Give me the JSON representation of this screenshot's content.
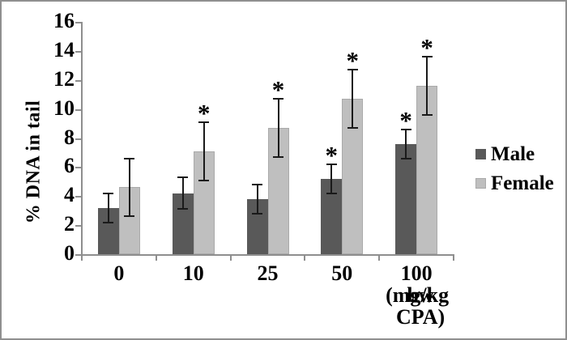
{
  "figure": {
    "border_color": "#8f8f8f",
    "background": "#ffffff"
  },
  "chart_data": {
    "type": "bar",
    "title": "",
    "ylabel": "% DNA in tail",
    "xlabel": "",
    "categories": [
      "0",
      "10",
      "25",
      "50",
      "100"
    ],
    "x_unit_lines": [
      "(mg/kg",
      "bw CPA)"
    ],
    "ylim": [
      0,
      16
    ],
    "yticks": [
      0,
      2,
      4,
      6,
      8,
      10,
      12,
      14,
      16
    ],
    "grid": false,
    "legend_position": "right",
    "significance_marker": "*",
    "axis_color": "#8e8e8e",
    "error_bar_color": "#1a1a1a",
    "text_color": "#000000",
    "series": [
      {
        "name": "Male",
        "color": "#595959",
        "values": [
          3.2,
          4.2,
          3.8,
          5.2,
          7.6
        ],
        "errors": [
          1.0,
          1.1,
          1.0,
          1.0,
          1.0
        ],
        "significant": [
          false,
          false,
          false,
          true,
          true
        ]
      },
      {
        "name": "Female",
        "color": "#bfbfbf",
        "values": [
          4.6,
          7.1,
          8.7,
          10.7,
          11.6
        ],
        "errors": [
          2.0,
          2.0,
          2.0,
          2.0,
          2.0
        ],
        "significant": [
          false,
          true,
          true,
          true,
          true
        ]
      }
    ]
  }
}
